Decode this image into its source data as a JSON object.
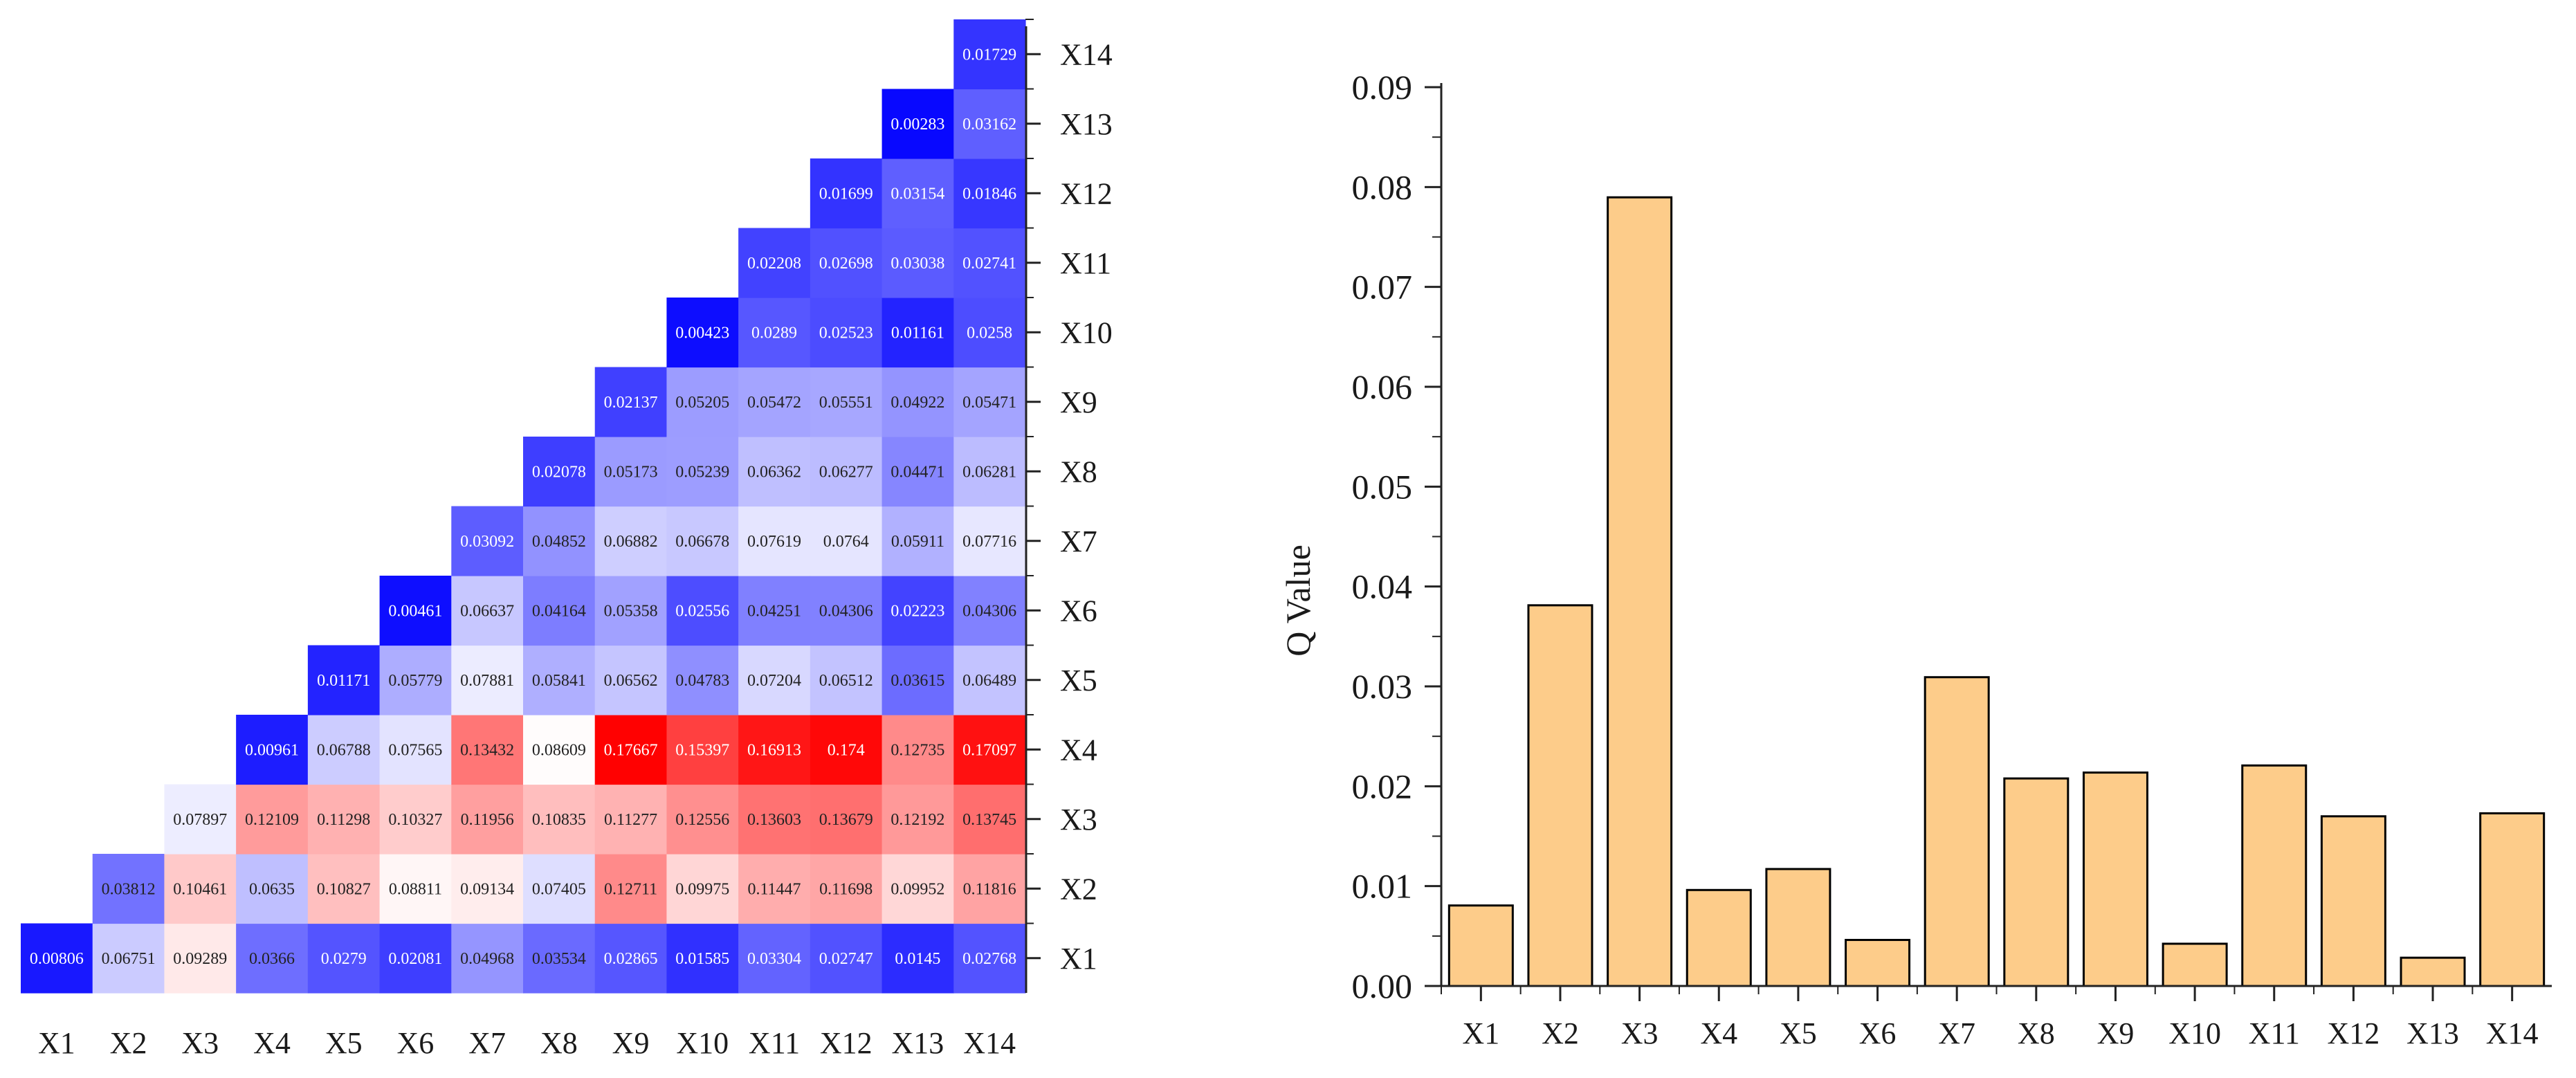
{
  "chart_data": [
    {
      "type": "heatmap",
      "title": "",
      "xlabel": "",
      "ylabel": "",
      "categories": [
        "X1",
        "X2",
        "X3",
        "X4",
        "X5",
        "X6",
        "X7",
        "X8",
        "X9",
        "X10",
        "X11",
        "X12",
        "X13",
        "X14"
      ],
      "matrix_layout": "lower-triangular; row i (X-axis) vs column j (Y-axis, X1 at bottom), cells where j <= i",
      "values": [
        [
          0.00806
        ],
        [
          0.06751,
          0.03812
        ],
        [
          0.09289,
          0.10461,
          0.07897
        ],
        [
          0.0366,
          0.0635,
          0.12109,
          0.00961
        ],
        [
          0.0279,
          0.10827,
          0.11298,
          0.06788,
          0.01171
        ],
        [
          0.02081,
          0.08811,
          0.10327,
          0.07565,
          0.05779,
          0.00461
        ],
        [
          0.04968,
          0.09134,
          0.11956,
          0.13432,
          0.07881,
          0.06637,
          0.03092
        ],
        [
          0.03534,
          0.07405,
          0.10835,
          0.08609,
          0.05841,
          0.04164,
          0.04852,
          0.02078
        ],
        [
          0.02865,
          0.12711,
          0.11277,
          0.17667,
          0.06562,
          0.05358,
          0.06882,
          0.05173,
          0.02137
        ],
        [
          0.01585,
          0.09975,
          0.12556,
          0.15397,
          0.04783,
          0.02556,
          0.06678,
          0.05239,
          0.05205,
          0.00423
        ],
        [
          0.03304,
          0.11447,
          0.13603,
          0.16913,
          0.07204,
          0.04251,
          0.07619,
          0.06362,
          0.05472,
          0.0289,
          0.02208
        ],
        [
          0.02747,
          0.11698,
          0.13679,
          0.174,
          0.06512,
          0.04306,
          0.0764,
          0.06277,
          0.05551,
          0.02523,
          0.02698,
          0.01699
        ],
        [
          0.0145,
          0.09952,
          0.12192,
          0.12735,
          0.03615,
          0.02223,
          0.05911,
          0.04471,
          0.04922,
          0.01161,
          0.03038,
          0.03154,
          0.00283
        ],
        [
          0.02768,
          0.11816,
          0.13745,
          0.17097,
          0.06489,
          0.04306,
          0.07716,
          0.06281,
          0.05471,
          0.0258,
          0.02741,
          0.01846,
          0.03162,
          0.01729
        ]
      ],
      "labels": [
        [
          "0.00806"
        ],
        [
          "0.06751",
          "0.03812"
        ],
        [
          "0.09289",
          "0.10461",
          "0.07897"
        ],
        [
          "0.0366",
          "0.0635",
          "0.12109",
          "0.00961"
        ],
        [
          "0.0279",
          "0.10827",
          "0.11298",
          "0.06788",
          "0.01171"
        ],
        [
          "0.02081",
          "0.08811",
          "0.10327",
          "0.07565",
          "0.05779",
          "0.00461"
        ],
        [
          "0.04968",
          "0.09134",
          "0.11956",
          "0.13432",
          "0.07881",
          "0.06637",
          "0.03092"
        ],
        [
          "0.03534",
          "0.07405",
          "0.10835",
          "0.08609",
          "0.05841",
          "0.04164",
          "0.04852",
          "0.02078"
        ],
        [
          "0.02865",
          "0.12711",
          "0.11277",
          "0.17667",
          "0.06562",
          "0.05358",
          "0.06882",
          "0.05173",
          "0.02137"
        ],
        [
          "0.01585",
          "0.09975",
          "0.12556",
          "0.15397",
          "0.04783",
          "0.02556",
          "0.06678",
          "0.05239",
          "0.05205",
          "0.00423"
        ],
        [
          "0.03304",
          "0.11447",
          "0.13603",
          "0.16913",
          "0.07204",
          "0.04251",
          "0.07619",
          "0.06362",
          "0.05472",
          "0.0289",
          "0.02208"
        ],
        [
          "0.02747",
          "0.11698",
          "0.13679",
          "0.174",
          "0.06512",
          "0.04306",
          "0.0764",
          "0.06277",
          "0.05551",
          "0.02523",
          "0.02698",
          "0.01699"
        ],
        [
          "0.0145",
          "0.09952",
          "0.12192",
          "0.12735",
          "0.03615",
          "0.02223",
          "0.05911",
          "0.04471",
          "0.04922",
          "0.01161",
          "0.03038",
          "0.03154",
          "0.00283"
        ],
        [
          "0.02768",
          "0.11816",
          "0.13745",
          "0.17097",
          "0.06489",
          "0.04306",
          "0.07716",
          "0.06281",
          "0.05471",
          "0.0258",
          "0.02741",
          "0.01846",
          "0.03162",
          "0.01729"
        ]
      ],
      "colorscale": {
        "low": "#0000ff",
        "mid": "#ffffff",
        "high": "#ff0000",
        "vmin": 0.0,
        "vmid": 0.085,
        "vmax": 0.177
      },
      "y_axis_side": "right",
      "legend": "none"
    },
    {
      "type": "bar",
      "title": "",
      "xlabel": "",
      "ylabel": "Q Value",
      "categories": [
        "X1",
        "X2",
        "X3",
        "X4",
        "X5",
        "X6",
        "X7",
        "X8",
        "X9",
        "X10",
        "X11",
        "X12",
        "X13",
        "X14"
      ],
      "values": [
        0.00806,
        0.03812,
        0.07897,
        0.00961,
        0.01171,
        0.00461,
        0.03092,
        0.02078,
        0.02137,
        0.00423,
        0.02208,
        0.01699,
        0.00283,
        0.01729
      ],
      "ylim": [
        0,
        0.09
      ],
      "yticks": [
        "0.00",
        "0.01",
        "0.02",
        "0.03",
        "0.04",
        "0.05",
        "0.06",
        "0.07",
        "0.08",
        "0.09"
      ],
      "bar_color": "#fdcc8a",
      "edge_color": "#000000",
      "grid": false,
      "legend": "none"
    }
  ]
}
